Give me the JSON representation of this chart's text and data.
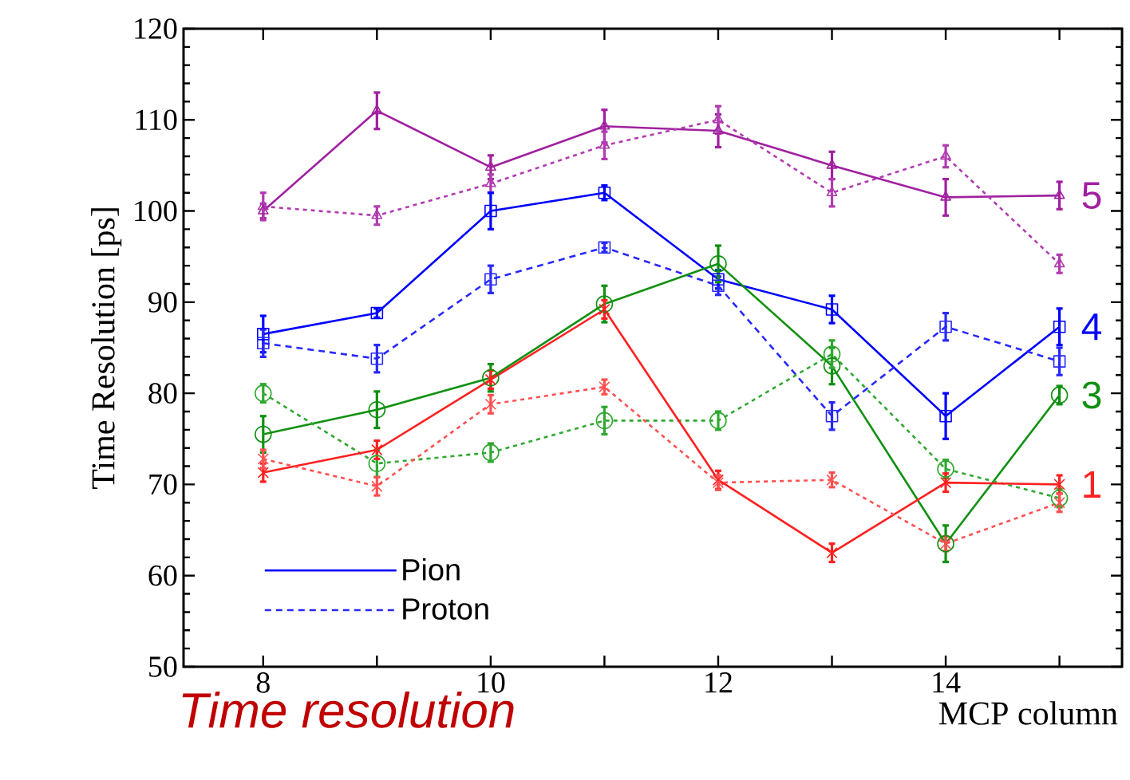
{
  "chart_data": {
    "type": "line",
    "title": "Time resolution",
    "xlabel": "MCP column",
    "ylabel": "Time Resolution [ps]",
    "x": [
      8,
      9,
      10,
      11,
      12,
      13,
      14,
      15
    ],
    "xlim": [
      7.3,
      15.55
    ],
    "ylim": [
      50,
      120
    ],
    "xticks": [
      8,
      {
        "value": 9,
        "label": null
      },
      10,
      {
        "value": 11,
        "label": null
      },
      12,
      {
        "value": 13,
        "label": null
      },
      14,
      {
        "value": 15,
        "label": null
      }
    ],
    "yticks": [
      50,
      60,
      70,
      80,
      90,
      100,
      110,
      120
    ],
    "legend": "bottom left",
    "series": [
      {
        "color": "#a020a0",
        "marker": "triangle",
        "line_style": "solid",
        "values": [
          100,
          111,
          104.8,
          109.3,
          108.8,
          105,
          101.5,
          101.7
        ],
        "errors": [
          0.8,
          2,
          1.3,
          1.8,
          1.8,
          1.5,
          2,
          1.5
        ]
      },
      {
        "color": "#b03cb0",
        "marker": "triangle",
        "line_style": "dotted",
        "values": [
          100.5,
          99.5,
          103,
          107.2,
          110,
          102,
          106,
          94.2
        ],
        "errors": [
          1.5,
          1,
          1,
          1.5,
          1.5,
          1.5,
          1.2,
          1
        ]
      },
      {
        "name": "Pion",
        "color": "#0000ff",
        "marker": "square",
        "line_style": "solid",
        "values": [
          86.5,
          88.8,
          100,
          102,
          92.5,
          89.2,
          77.5,
          87.3
        ],
        "errors": [
          2,
          0.5,
          2,
          0.8,
          1,
          1.5,
          2.5,
          2
        ]
      },
      {
        "name": "Proton",
        "color": "#2828ff",
        "marker": "square",
        "line_style": "dashed",
        "values": [
          85.5,
          83.8,
          92.5,
          96,
          91.8,
          77.5,
          87.3,
          83.5
        ],
        "errors": [
          1.5,
          1.5,
          1.5,
          0.5,
          1,
          1.5,
          1.5,
          1.5
        ]
      },
      {
        "color": "#109010",
        "marker": "circle",
        "line_style": "solid",
        "values": [
          75.5,
          78.2,
          81.7,
          89.8,
          94.2,
          83,
          63.5,
          79.8
        ],
        "errors": [
          2,
          2,
          1.5,
          2,
          2,
          2,
          2,
          1
        ]
      },
      {
        "color": "#30a830",
        "marker": "circle",
        "line_style": "dotted",
        "values": [
          80,
          72.3,
          73.5,
          77,
          77,
          84.3,
          71.7,
          68.5
        ],
        "errors": [
          1,
          1.5,
          1,
          1.5,
          1,
          1.5,
          1,
          1
        ]
      },
      {
        "color": "#ff2020",
        "marker": "cross",
        "line_style": "solid",
        "values": [
          71.3,
          73.8,
          81.5,
          89.2,
          70.5,
          62.5,
          70.2,
          70
        ],
        "errors": [
          1,
          1,
          1,
          1,
          1,
          1,
          1,
          1
        ]
      },
      {
        "color": "#ff5050",
        "marker": "cross",
        "line_style": "dotted",
        "values": [
          72.8,
          69.8,
          78.8,
          80.7,
          70.2,
          70.5,
          63.5,
          68
        ],
        "errors": [
          1,
          1,
          1,
          0.8,
          0.8,
          0.8,
          0.8,
          1
        ]
      }
    ],
    "annotations": [
      "5",
      "4",
      "3",
      "1"
    ]
  }
}
